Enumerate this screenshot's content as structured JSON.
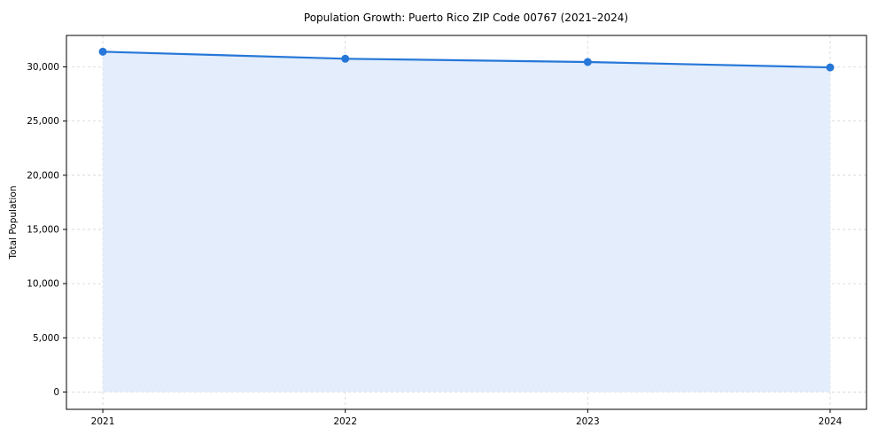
{
  "chart_data": {
    "type": "line",
    "title": "Population Growth: Puerto Rico ZIP Code 00767 (2021–2024)",
    "xlabel": "",
    "ylabel": "Total Population",
    "x": [
      2021,
      2022,
      2023,
      2024
    ],
    "categories": [
      "2021",
      "2022",
      "2023",
      "2024"
    ],
    "series": [
      {
        "name": "Total Population",
        "values": [
          31400,
          30750,
          30450,
          29950
        ]
      }
    ],
    "xticks": [
      2021,
      2022,
      2023,
      2024
    ],
    "yticks": [
      0,
      5000,
      10000,
      15000,
      20000,
      25000,
      30000
    ],
    "xlim": [
      2020.85,
      2024.15
    ],
    "ylim": [
      -1600,
      32900
    ],
    "grid": true,
    "legend": false,
    "line_color": "#2677d8",
    "fill_color": "#e3edfb",
    "marker": "circle",
    "baseline_value": 0
  }
}
